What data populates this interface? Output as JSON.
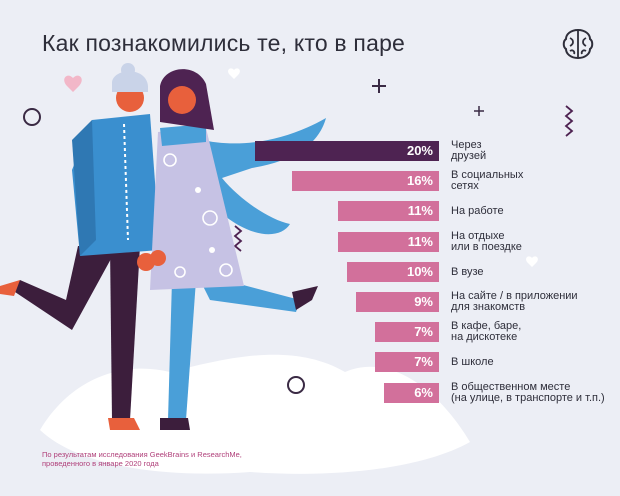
{
  "title": "Как познакомились те, кто в паре",
  "footnote": "По результатам исследования GeekBrains и ResearchMe, проведенного в январе 2020 года",
  "logo_icon": "brain-icon",
  "colors": {
    "top_bar": "#4e2352",
    "bars": "#d2709b",
    "title": "#2e2e3a",
    "footnote": "#b0407a"
  },
  "chart_data": {
    "type": "bar",
    "orientation": "horizontal",
    "categories": [
      "Через\nдрузей",
      "В социальных\nсетях",
      "На работе",
      "На отдыхе\nили в поездке",
      "В вузе",
      "На сайте / в приложении\nдля знакомств",
      "В кафе, баре,\nна дискотеке",
      "В школе",
      "В общественном месте\n(на улице, в транспорте и т.п.)"
    ],
    "values": [
      20,
      16,
      11,
      11,
      10,
      9,
      7,
      7,
      6
    ],
    "value_labels": [
      "20%",
      "16%",
      "11%",
      "11%",
      "10%",
      "9%",
      "7%",
      "7%",
      "6%"
    ],
    "unit": "%"
  }
}
